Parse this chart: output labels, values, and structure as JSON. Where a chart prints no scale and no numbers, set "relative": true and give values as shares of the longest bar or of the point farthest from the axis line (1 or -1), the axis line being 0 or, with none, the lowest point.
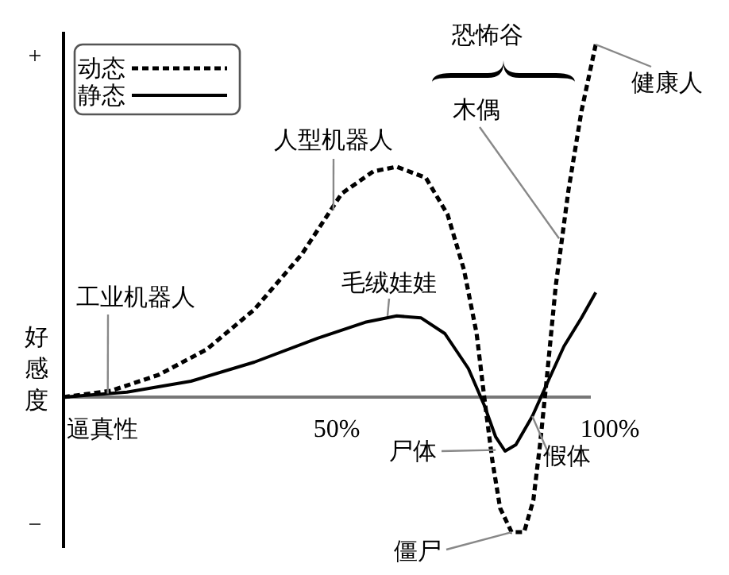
{
  "chart_data": {
    "type": "line",
    "relative": true,
    "xlabel": "逼真性",
    "ylabel": "好感度",
    "xlim": [
      0,
      100
    ],
    "xticks": [
      {
        "value": 50,
        "label": "50%"
      },
      {
        "value": 100,
        "label": "100%"
      }
    ],
    "legend": "top left",
    "grid": false,
    "marker": "none",
    "series": [
      {
        "name": "动态",
        "color": "#000000",
        "line_style": "dashed",
        "x": [
          0,
          8.7,
          17.4,
          26.2,
          34.9,
          43.6,
          50.9,
          56.7,
          61.0,
          66.3,
          70.3,
          73.3,
          75.6,
          77.0,
          78.5,
          79.9,
          82.0,
          84.3,
          86.0,
          87.2,
          88.4,
          90.1,
          92.4,
          94.8,
          97.4
        ],
        "values": [
          0,
          0.018,
          0.063,
          0.135,
          0.248,
          0.405,
          0.577,
          0.64,
          0.653,
          0.622,
          0.518,
          0.36,
          0.18,
          0,
          -0.18,
          -0.315,
          -0.383,
          -0.383,
          -0.293,
          -0.135,
          0.045,
          0.315,
          0.586,
          0.811,
          1.0
        ]
      },
      {
        "name": "静态",
        "color": "#000000",
        "line_style": "solid",
        "x": [
          0,
          11.6,
          23.3,
          34.9,
          46.5,
          55.2,
          61.0,
          65.4,
          69.8,
          74.1,
          77.0,
          79.1,
          80.8,
          82.8,
          85.8,
          88.7,
          91.6,
          94.8,
          97.4
        ],
        "values": [
          0,
          0.014,
          0.045,
          0.099,
          0.167,
          0.212,
          0.23,
          0.225,
          0.18,
          0.081,
          -0.023,
          -0.113,
          -0.153,
          -0.135,
          -0.054,
          0.045,
          0.144,
          0.225,
          0.297
        ]
      }
    ],
    "annotations": [
      "+",
      "−",
      {
        "text": "人型机器人",
        "x": 49.4,
        "y": 0.53
      },
      {
        "text": "毛绒娃娃",
        "x": 59.3,
        "y": 0.23
      },
      {
        "text": "工业机器人",
        "x": 8.1,
        "y": 0.01
      },
      {
        "text": "尸体",
        "x": 79.1,
        "y": -0.15
      },
      {
        "text": "僵尸",
        "x": 82.0,
        "y": -0.383
      },
      {
        "text": "假体",
        "x": 85.8,
        "y": -0.054
      },
      {
        "text": "木偶",
        "x": 90.7,
        "y": 0.45
      },
      {
        "text": "健康人",
        "x": 97.4,
        "y": 1.0
      },
      "恐怖谷"
    ]
  }
}
